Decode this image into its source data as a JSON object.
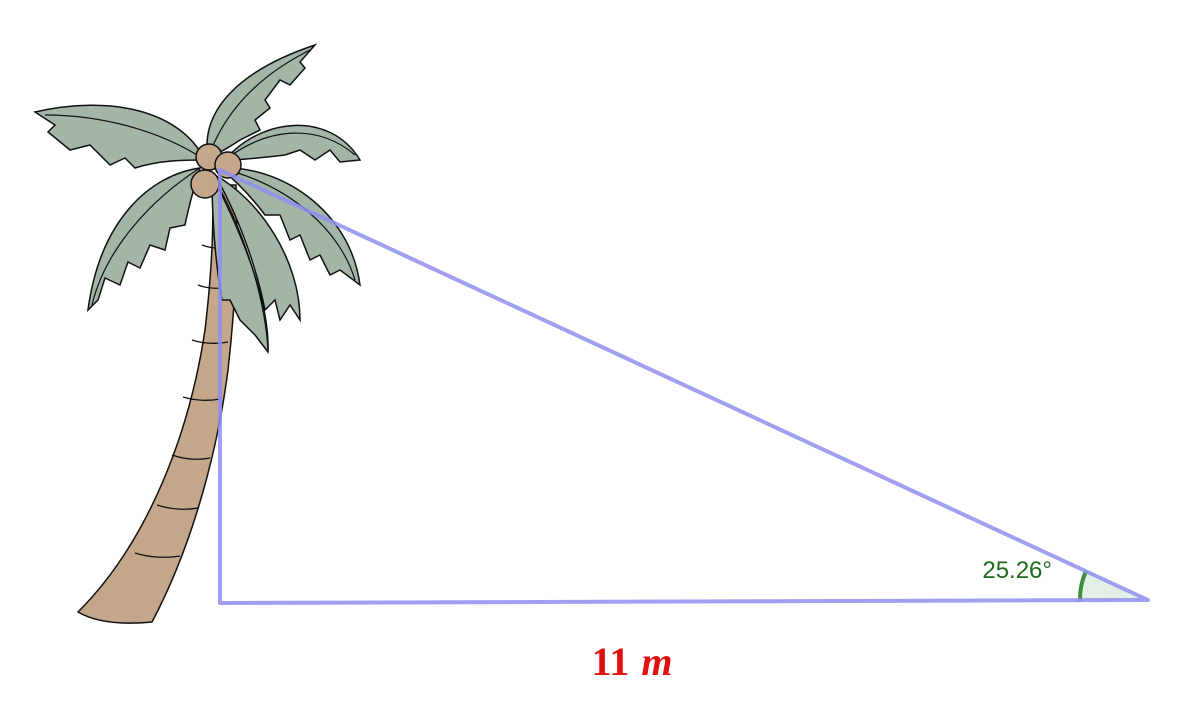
{
  "angle_label": "25.26°",
  "base_label": {
    "value": "11",
    "unit": "m"
  }
}
